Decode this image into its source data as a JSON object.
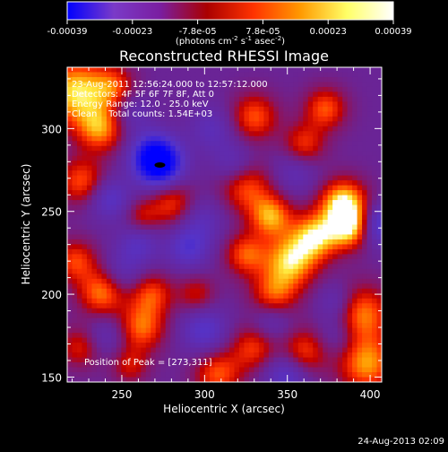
{
  "colorbar": {
    "ticks": [
      "-0.00039",
      "-0.00023",
      "-7.8e-05",
      "7.8e-05",
      "0.00023",
      "0.00039"
    ],
    "unit_label": "(photons cm",
    "unit_exp1": "-2",
    "unit_mid": " s",
    "unit_exp2": "-1",
    "unit_end": " asec",
    "unit_exp3": "-2",
    "unit_close": ")",
    "range": [
      -0.00039,
      0.00039
    ],
    "colors": [
      "#0000ff",
      "#7a3ac8",
      "#7a1ea0",
      "#aa0000",
      "#ff3300",
      "#ff9900",
      "#ffff66",
      "#ffffff"
    ]
  },
  "chart_data": {
    "type": "heatmap",
    "title": "Reconstructed RHESSI Image",
    "xlabel": "Heliocentric X (arcsec)",
    "ylabel": "Heliocentric Y (arcsec)",
    "xlim": [
      217,
      407
    ],
    "ylim": [
      147,
      337
    ],
    "xticks": [
      250,
      300,
      350,
      400
    ],
    "yticks": [
      150,
      200,
      250,
      300
    ],
    "info_lines": [
      "23-Aug-2011 12:56:24.000 to 12:57:12.000",
      "Detectors: 4F 5F 6F 7F 8F, Att 0",
      "Energy Range: 12.0 - 25.0 keV",
      "Clean    Total counts: 1.54E+03"
    ],
    "peak_label": "Position of Peak = [273,311]",
    "peak": [
      273,
      311
    ],
    "sources": [
      {
        "x": 222,
        "y": 322,
        "v": 0.9,
        "s": 14
      },
      {
        "x": 237,
        "y": 300,
        "v": 0.7,
        "s": 10
      },
      {
        "x": 226,
        "y": 268,
        "v": 0.6,
        "s": 10
      },
      {
        "x": 245,
        "y": 325,
        "v": 0.5,
        "s": 9
      },
      {
        "x": 280,
        "y": 255,
        "v": 0.55,
        "s": 10
      },
      {
        "x": 262,
        "y": 247,
        "v": 0.35,
        "s": 7
      },
      {
        "x": 325,
        "y": 265,
        "v": 0.6,
        "s": 11
      },
      {
        "x": 330,
        "y": 307,
        "v": 0.6,
        "s": 10
      },
      {
        "x": 360,
        "y": 290,
        "v": 0.55,
        "s": 9
      },
      {
        "x": 373,
        "y": 312,
        "v": 0.6,
        "s": 9
      },
      {
        "x": 384,
        "y": 255,
        "v": 0.95,
        "s": 10
      },
      {
        "x": 388,
        "y": 240,
        "v": 0.85,
        "s": 9
      },
      {
        "x": 367,
        "y": 235,
        "v": 0.85,
        "s": 10
      },
      {
        "x": 340,
        "y": 247,
        "v": 0.75,
        "s": 9
      },
      {
        "x": 352,
        "y": 220,
        "v": 0.85,
        "s": 11
      },
      {
        "x": 325,
        "y": 224,
        "v": 0.6,
        "s": 9
      },
      {
        "x": 342,
        "y": 200,
        "v": 0.6,
        "s": 10
      },
      {
        "x": 395,
        "y": 188,
        "v": 0.7,
        "s": 12
      },
      {
        "x": 398,
        "y": 158,
        "v": 0.75,
        "s": 12
      },
      {
        "x": 360,
        "y": 165,
        "v": 0.6,
        "s": 10
      },
      {
        "x": 330,
        "y": 168,
        "v": 0.55,
        "s": 10
      },
      {
        "x": 308,
        "y": 152,
        "v": 0.6,
        "s": 10
      },
      {
        "x": 238,
        "y": 201,
        "v": 0.7,
        "s": 10
      },
      {
        "x": 222,
        "y": 220,
        "v": 0.55,
        "s": 9
      },
      {
        "x": 225,
        "y": 168,
        "v": 0.45,
        "s": 9
      },
      {
        "x": 262,
        "y": 180,
        "v": 0.65,
        "s": 10
      },
      {
        "x": 268,
        "y": 200,
        "v": 0.55,
        "s": 9
      },
      {
        "x": 295,
        "y": 200,
        "v": 0.4,
        "s": 8
      },
      {
        "x": 255,
        "y": 157,
        "v": 0.4,
        "s": 8
      },
      {
        "x": 273,
        "y": 278,
        "v": -1.0,
        "s": 10
      },
      {
        "x": 268,
        "y": 285,
        "v": -0.5,
        "s": 9
      },
      {
        "x": 242,
        "y": 258,
        "v": -0.45,
        "s": 9
      },
      {
        "x": 290,
        "y": 228,
        "v": -0.45,
        "s": 9
      },
      {
        "x": 260,
        "y": 230,
        "v": -0.35,
        "s": 9
      },
      {
        "x": 305,
        "y": 300,
        "v": -0.3,
        "s": 10
      },
      {
        "x": 318,
        "y": 278,
        "v": -0.35,
        "s": 9
      },
      {
        "x": 298,
        "y": 245,
        "v": -0.3,
        "s": 10
      },
      {
        "x": 300,
        "y": 178,
        "v": -0.45,
        "s": 10
      },
      {
        "x": 350,
        "y": 152,
        "v": -0.5,
        "s": 10
      },
      {
        "x": 340,
        "y": 183,
        "v": -0.35,
        "s": 9
      },
      {
        "x": 405,
        "y": 242,
        "v": -0.6,
        "s": 9
      },
      {
        "x": 380,
        "y": 195,
        "v": -0.35,
        "s": 8
      },
      {
        "x": 380,
        "y": 175,
        "v": -0.3,
        "s": 9
      },
      {
        "x": 240,
        "y": 175,
        "v": -0.3,
        "s": 9
      },
      {
        "x": 250,
        "y": 212,
        "v": -0.3,
        "s": 9
      },
      {
        "x": 355,
        "y": 275,
        "v": -0.3,
        "s": 10
      },
      {
        "x": 255,
        "y": 310,
        "v": -0.3,
        "s": 9
      }
    ]
  },
  "footer": {
    "timestamp": "24-Aug-2013 02:09"
  }
}
